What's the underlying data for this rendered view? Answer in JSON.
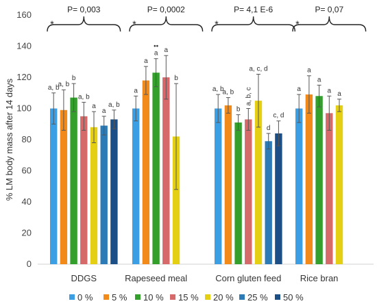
{
  "chart_data": {
    "type": "bar",
    "ylabel": "% LM body mass  after 14 days",
    "ylim": [
      0,
      160
    ],
    "yticks": [
      0,
      20,
      40,
      60,
      80,
      100,
      120,
      140,
      160
    ],
    "grid": false,
    "legend_position": "bottom",
    "series": [
      {
        "name": "0 %",
        "color": "#3c9ee3"
      },
      {
        "name": "5 %",
        "color": "#f28a19"
      },
      {
        "name": "10 %",
        "color": "#33a02c"
      },
      {
        "name": "15 %",
        "color": "#d66a6a"
      },
      {
        "name": "20 %",
        "color": "#e5cf12"
      },
      {
        "name": "25 %",
        "color": "#2c7bb6"
      },
      {
        "name": "50 %",
        "color": "#1b4f85"
      }
    ],
    "groups": [
      {
        "category": "DDGS",
        "pvalue": "P= 0,003",
        "star": "*",
        "bars": [
          {
            "series": "0 %",
            "value": 100,
            "err": 10,
            "label": "a, b"
          },
          {
            "series": "5 %",
            "value": 99,
            "err": 13,
            "label": "a, b"
          },
          {
            "series": "10 %",
            "value": 107,
            "err": 9,
            "label": "b"
          },
          {
            "series": "15 %",
            "value": 95,
            "err": 9,
            "label": "a, b"
          },
          {
            "series": "20 %",
            "value": 88,
            "err": 10,
            "label": "a"
          },
          {
            "series": "25 %",
            "value": 89,
            "err": 6,
            "label": "a"
          },
          {
            "series": "50 %",
            "value": 93,
            "err": 6,
            "label": "a, b"
          }
        ]
      },
      {
        "category": "Rapeseed meal",
        "pvalue": "P= 0,0002",
        "star": "*",
        "bars": [
          {
            "series": "0 %",
            "value": 100,
            "err": 8,
            "label": "a"
          },
          {
            "series": "5 %",
            "value": 118,
            "err": 9,
            "label": "a"
          },
          {
            "series": "10 %",
            "value": 123,
            "err": 9,
            "label": "a",
            "extra": "••"
          },
          {
            "series": "15 %",
            "value": 120,
            "err": 14,
            "label": "a"
          },
          {
            "series": "20 %",
            "value": 82,
            "err": 34,
            "label": "b"
          }
        ]
      },
      {
        "category": "Corn gluten feed",
        "pvalue": "P= 4,1 E-6",
        "star": "*",
        "bars": [
          {
            "series": "0 %",
            "value": 100,
            "err": 9,
            "label": "a, b"
          },
          {
            "series": "5 %",
            "value": 102,
            "err": 5,
            "label": "a, b"
          },
          {
            "series": "10 %",
            "value": 91,
            "err": 5,
            "label": "b"
          },
          {
            "series": "15 %",
            "value": 93,
            "err": 7,
            "label": "a, b, c",
            "vertical": true
          },
          {
            "series": "20 %",
            "value": 105,
            "err": 17,
            "label": "a, c, d"
          },
          {
            "series": "25 %",
            "value": 79,
            "err": 5,
            "label": "d"
          },
          {
            "series": "50 %",
            "value": 84,
            "err": 8,
            "label": "c, d"
          }
        ]
      },
      {
        "category": "Rice bran",
        "pvalue": "P= 0,07",
        "star": "*",
        "bars": [
          {
            "series": "0 %",
            "value": 100,
            "err": 9,
            "label": "a"
          },
          {
            "series": "5 %",
            "value": 109,
            "err": 12,
            "label": "a"
          },
          {
            "series": "10 %",
            "value": 108,
            "err": 7,
            "label": "a"
          },
          {
            "series": "15 %",
            "value": 97,
            "err": 11,
            "label": "a"
          },
          {
            "series": "20 %",
            "value": 102,
            "err": 4,
            "label": "a"
          }
        ]
      }
    ]
  }
}
